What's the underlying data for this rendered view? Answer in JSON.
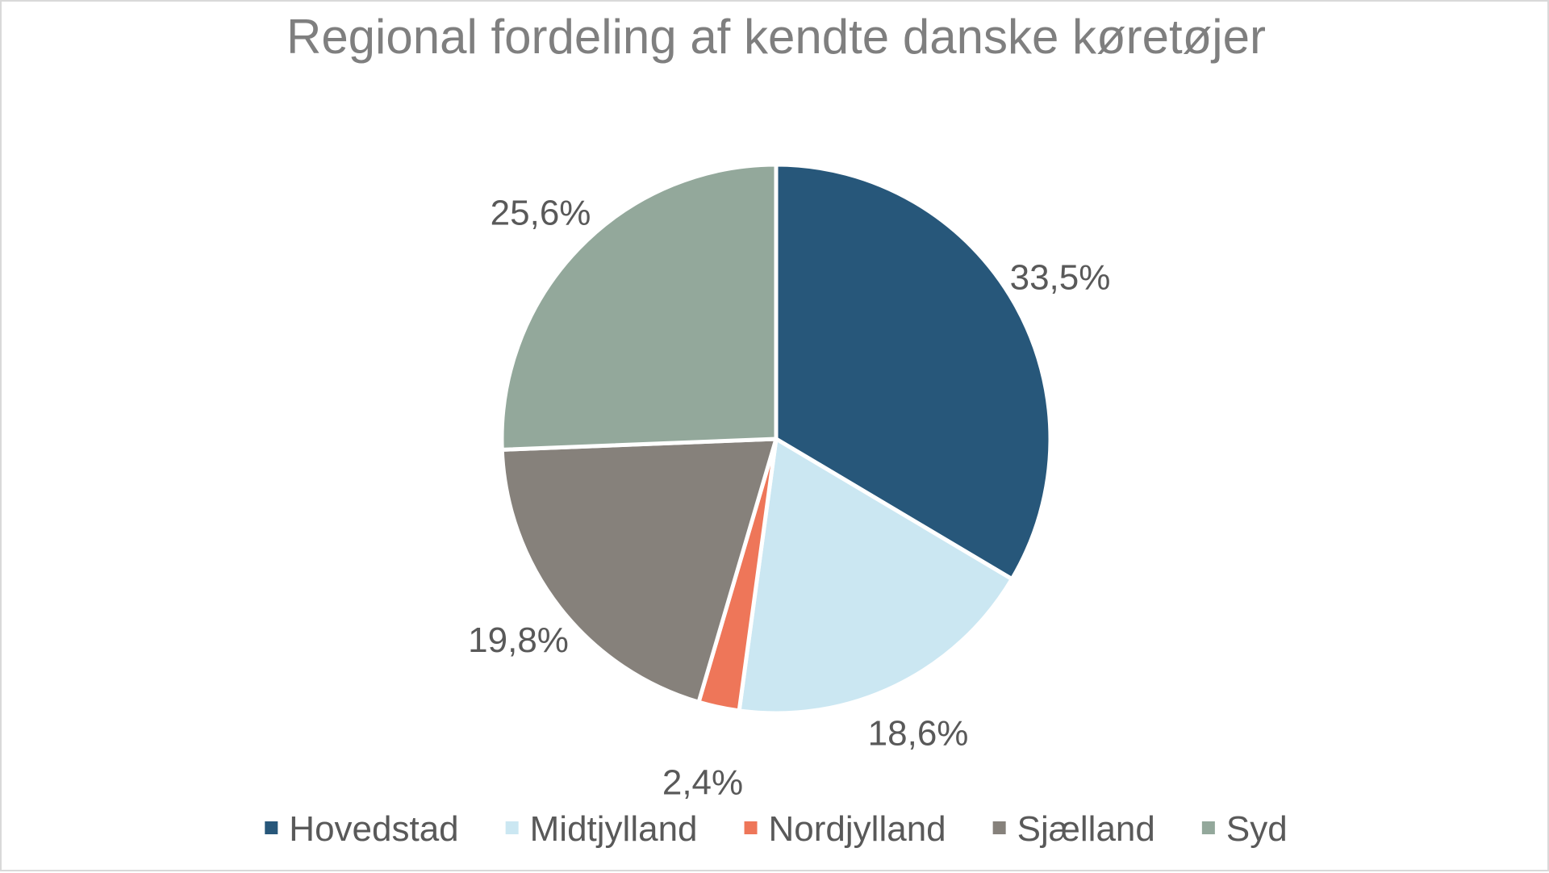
{
  "chart_data": {
    "type": "pie",
    "title": "Regional fordeling af kendte danske køretøjer",
    "categories": [
      "Hovedstad",
      "Midtjylland",
      "Nordjylland",
      "Sjælland",
      "Syd"
    ],
    "values": [
      33.5,
      18.6,
      2.4,
      19.8,
      25.6
    ],
    "labels": [
      "33,5%",
      "18,6%",
      "2,4%",
      "19,8%",
      "25,6%"
    ],
    "colors": [
      "#27577a",
      "#cbe7f2",
      "#ee7659",
      "#86817b",
      "#93a89b"
    ],
    "legend": "bottom"
  }
}
